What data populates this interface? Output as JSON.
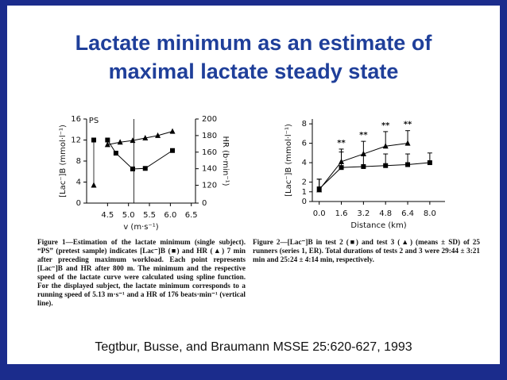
{
  "title": [
    "Lactate minimum as an estimate of",
    "maximal lactate steady state"
  ],
  "chart_data": [
    {
      "type": "line",
      "x_label": "v (m·s⁻¹)",
      "y_label": "[Lac⁻]B (mmol·l⁻¹)",
      "y2_label": "HR (b·min⁻¹)",
      "xlim": [
        4.0,
        6.6
      ],
      "xticks": [
        4.5,
        {
          "value": 5.0,
          "label": "5.0"
        },
        5.5,
        {
          "value": 6.0,
          "label": "6.0"
        },
        6.5
      ],
      "ylim": [
        0,
        16
      ],
      "yticks": [
        0,
        4,
        8,
        12,
        16
      ],
      "y2lim": [
        0,
        200
      ],
      "y2_break": [
        0,
        110
      ],
      "y2ticks": [
        0,
        120,
        140,
        160,
        180,
        200
      ],
      "pretest": {
        "label": "PS",
        "lactate": 12,
        "hr": 120
      },
      "vline_x": 5.13,
      "series": [
        {
          "name": "[Lac⁻]B",
          "marker": "square",
          "color": "#000000",
          "x": [
            4.5,
            4.7,
            5.1,
            5.4,
            6.05
          ],
          "values": [
            12,
            9.5,
            6.5,
            6.6,
            10
          ]
        },
        {
          "name": "HR",
          "marker": "triangle",
          "color": "#000000",
          "axis": "y2",
          "x": [
            4.5,
            4.8,
            5.1,
            5.4,
            5.7,
            6.05
          ],
          "values": [
            169,
            172,
            174,
            177,
            180,
            185
          ]
        }
      ]
    },
    {
      "type": "line",
      "x_label": "Distance (km)",
      "y_label": "[Lac⁻]B (mmol·l⁻¹)",
      "xlim": [
        -0.5,
        9.1
      ],
      "xticks": [
        {
          "value": 0,
          "label": "0.0"
        },
        1.6,
        3.2,
        4.8,
        6.4,
        {
          "value": 8,
          "label": "8.0"
        }
      ],
      "ylim": [
        0,
        8.5
      ],
      "yticks": [
        0,
        1,
        2,
        4,
        6,
        8
      ],
      "series": [
        {
          "name": "test 3",
          "marker": "triangle",
          "color": "#000000",
          "x": [
            0,
            1.6,
            3.2,
            4.8,
            6.4
          ],
          "values": [
            1.2,
            4.1,
            4.9,
            5.7,
            6.0
          ],
          "errors": [
            1.1,
            1.3,
            1.3,
            1.5,
            1.3
          ]
        },
        {
          "name": "test 2",
          "marker": "square",
          "color": "#000000",
          "x": [
            0,
            1.6,
            3.2,
            4.8,
            6.4,
            8
          ],
          "values": [
            1.3,
            3.5,
            3.6,
            3.7,
            3.8,
            4.0
          ],
          "errors": [
            1.0,
            1.6,
            1.2,
            1.2,
            1.1,
            1.0
          ]
        }
      ],
      "annotations": [
        {
          "x": 1.6,
          "text": "**"
        },
        {
          "x": 3.2,
          "text": "**"
        },
        {
          "x": 4.8,
          "text": "**"
        },
        {
          "x": 6.4,
          "text": "**"
        }
      ]
    }
  ],
  "captions": [
    "Figure 1—Estimation of the lactate minimum (single subject). “PS” (pretest sample) indicates [Lac⁻]B (■) and HR (▲) 7 min after preceding maximum workload. Each point represents [Lac⁻]B and HR after 800 m. The minimum and the respective speed of the lactate curve were calculated using spline function. For the displayed subject, the lactate minimum corresponds to a running speed of 5.13 m·s⁻¹ and a HR of 176 beats·min⁻¹ (vertical line).",
    "Figure 2—[Lac⁻]B in test 2 (■) and test 3 (▲) (means ± SD) of 25 runners (series 1, ER). Total durations of tests 2 and 3 were 29:44 ± 3:21 min and 25:24 ± 4:14 min, respectively."
  ],
  "citation": "Tegtbur, Busse, and Braumann MSSE 25:620-627, 1993"
}
